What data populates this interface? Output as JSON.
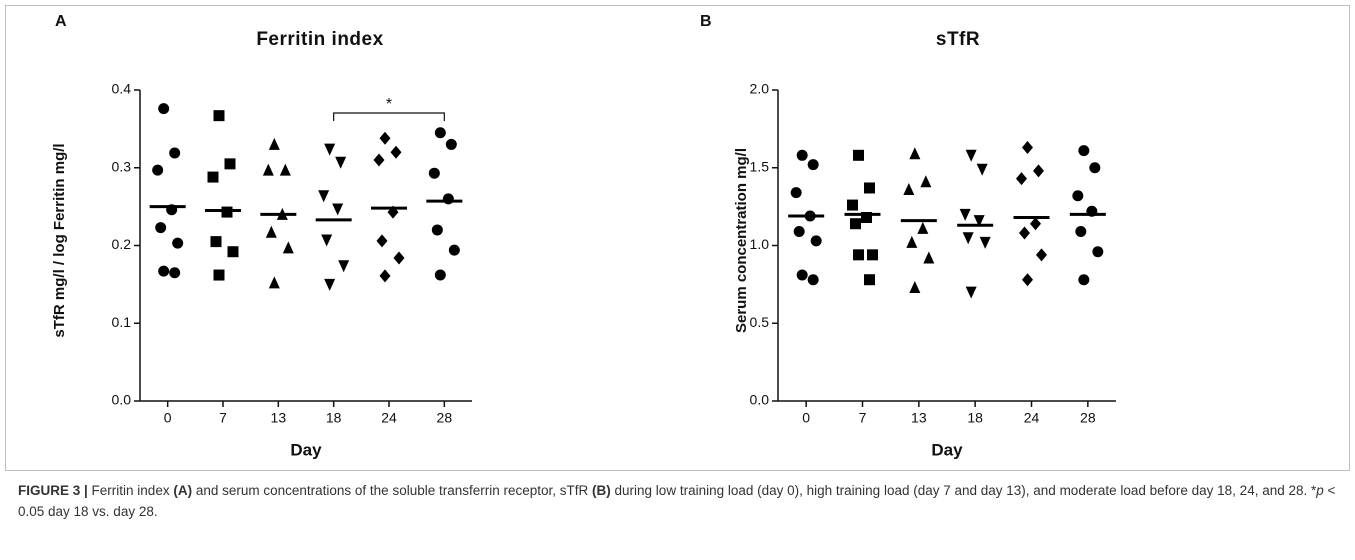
{
  "chart_data": [
    {
      "type": "dot",
      "label": "A",
      "title": "Ferritin index",
      "xlabel": "Day",
      "ylabel": "sTfR mg/l / log Ferritin mg/l",
      "categories": [
        "0",
        "7",
        "13",
        "18",
        "24",
        "28"
      ],
      "markers": [
        "circle",
        "square",
        "triangle",
        "triangle-down",
        "diamond",
        "circle"
      ],
      "color": "#000000",
      "points": [
        [
          0.376,
          0.319,
          0.297,
          0.246,
          0.223,
          0.203,
          0.167,
          0.165
        ],
        [
          0.367,
          0.305,
          0.288,
          0.243,
          0.205,
          0.192,
          0.162
        ],
        [
          0.33,
          0.297,
          0.297,
          0.24,
          0.217,
          0.197,
          0.152
        ],
        [
          0.324,
          0.307,
          0.264,
          0.247,
          0.207,
          0.174,
          0.15
        ],
        [
          0.338,
          0.32,
          0.31,
          0.243,
          0.206,
          0.184,
          0.161
        ],
        [
          0.345,
          0.33,
          0.293,
          0.26,
          0.22,
          0.194,
          0.162
        ]
      ],
      "means": [
        0.25,
        0.245,
        0.24,
        0.233,
        0.248,
        0.257
      ],
      "ylim": [
        0,
        0.4
      ],
      "yticks": [
        {
          "value": 0,
          "label": "0.0"
        },
        0.1,
        0.2,
        0.3,
        0.4
      ],
      "annotation": "*"
    },
    {
      "type": "dot",
      "label": "B",
      "title": "sTfR",
      "xlabel": "Day",
      "ylabel": "Serum concentration mg/l",
      "categories": [
        "0",
        "7",
        "13",
        "18",
        "24",
        "28"
      ],
      "markers": [
        "circle",
        "square",
        "triangle",
        "triangle-down",
        "diamond",
        "circle"
      ],
      "color": "#000000",
      "points": [
        [
          1.58,
          1.52,
          1.34,
          1.19,
          1.09,
          1.03,
          0.81,
          0.78
        ],
        [
          1.58,
          1.37,
          1.26,
          1.18,
          1.14,
          0.94,
          0.94,
          0.78
        ],
        [
          1.59,
          1.41,
          1.36,
          1.11,
          1.02,
          0.92,
          0.73
        ],
        [
          1.58,
          1.49,
          1.2,
          1.16,
          1.05,
          1.02,
          0.7
        ],
        [
          1.63,
          1.48,
          1.43,
          1.14,
          1.08,
          0.94,
          0.78
        ],
        [
          1.61,
          1.5,
          1.32,
          1.22,
          1.09,
          0.96,
          0.78
        ]
      ],
      "means": [
        1.19,
        1.2,
        1.16,
        1.13,
        1.18,
        1.2
      ],
      "ylim": [
        0,
        2
      ],
      "yticks": [
        {
          "value": 0,
          "label": "0.0"
        },
        0.5,
        {
          "value": 1,
          "label": "1.0"
        },
        1.5,
        {
          "value": 2,
          "label": "2.0"
        }
      ]
    }
  ],
  "caption": [
    {
      "text": "FIGURE 3 | ",
      "bold": true
    },
    {
      "text": "Ferritin index "
    },
    {
      "text": "(A)",
      "bold": true
    },
    {
      "text": " and serum concentrations of the soluble transferrin receptor, sTfR "
    },
    {
      "text": "(B)",
      "bold": true
    },
    {
      "text": " during low training load (day 0), high training load (day 7 and day 13), and moderate load before day 18, 24, and 28. *"
    },
    {
      "text": "p",
      "italic": true
    },
    {
      "text": " < 0.05 day 18 vs. day 28."
    }
  ]
}
